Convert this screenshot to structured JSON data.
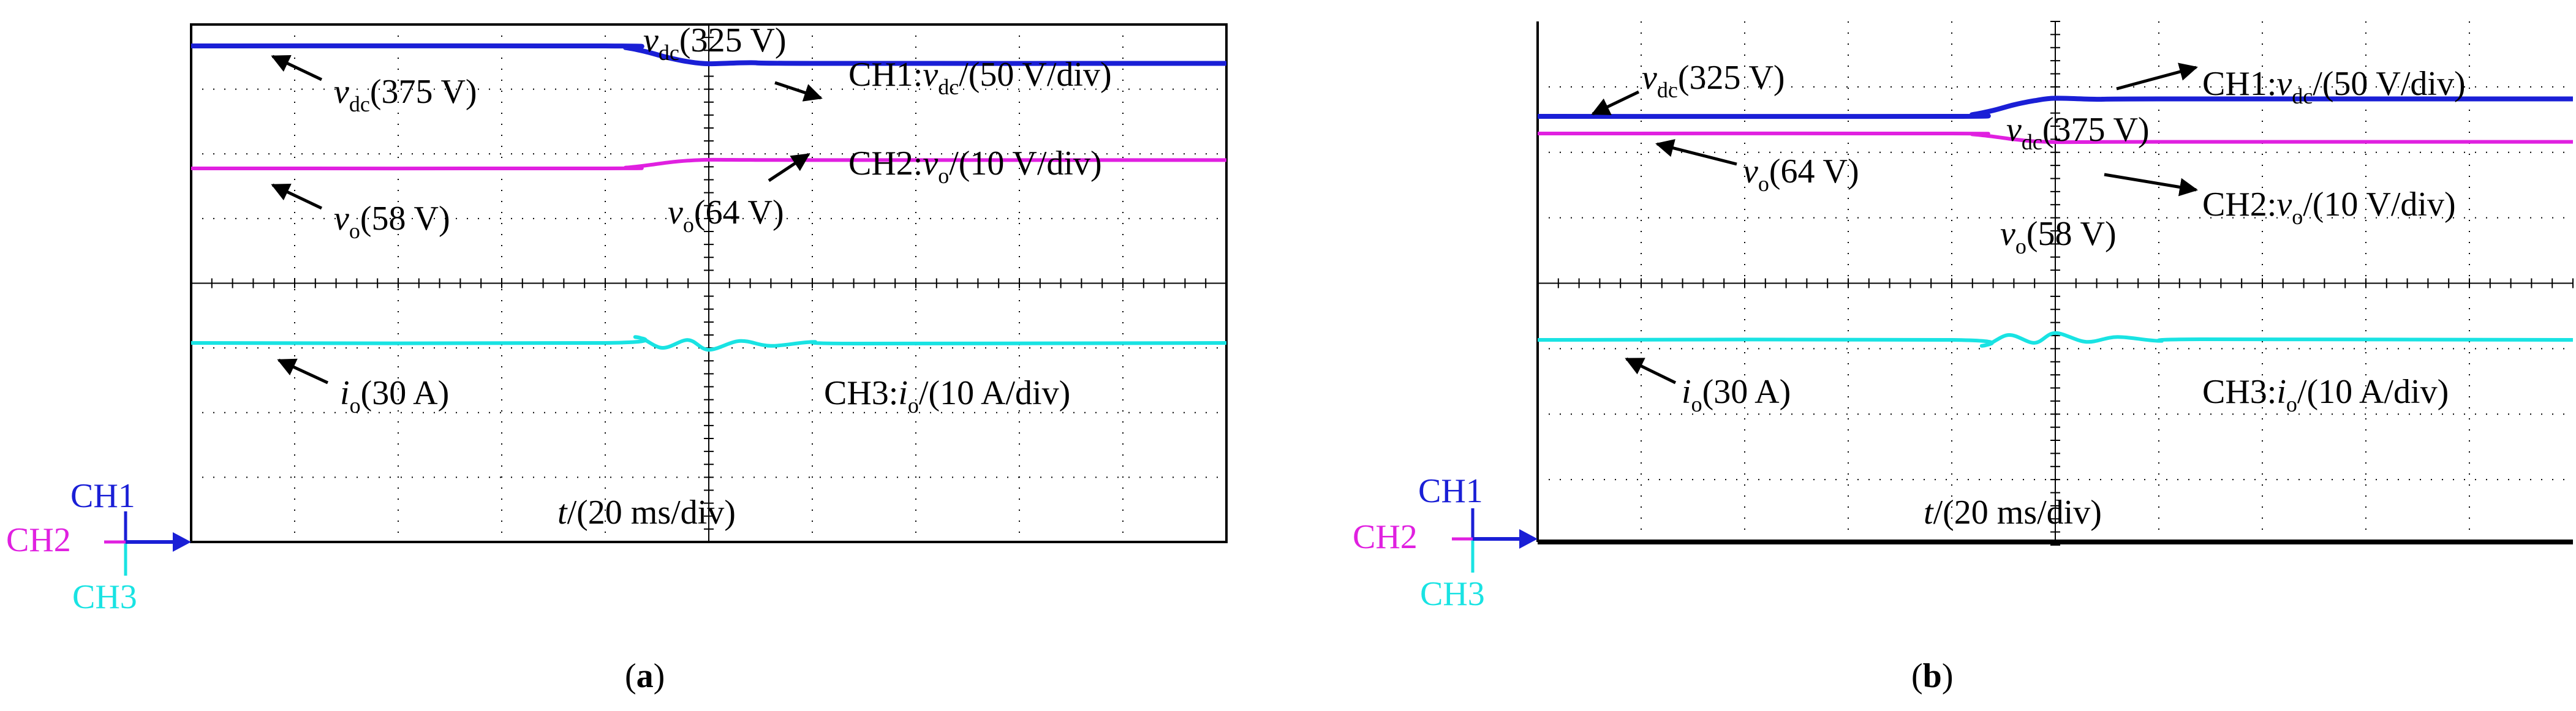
{
  "colors": {
    "ch1": "#1a1fd6",
    "ch2": "#e020e0",
    "ch3": "#19e3e3",
    "grid": "#000000"
  },
  "panels": [
    {
      "caption": "a",
      "annotations": {
        "vdc_pre": {
          "sym": "v",
          "sub": "dc",
          "val": "(375 V)"
        },
        "vdc_post": {
          "sym": "v",
          "sub": "dc",
          "val": "(325 V)"
        },
        "ch1": {
          "pre": "CH1:",
          "sym": "v",
          "sub": "dc",
          "val": "/(50 V/div)"
        },
        "ch2": {
          "pre": "CH2:",
          "sym": "v",
          "sub": "o",
          "val": "/(10 V/div)"
        },
        "vo_pre": {
          "sym": "v",
          "sub": "o",
          "val": "(58 V)"
        },
        "vo_post": {
          "sym": "v",
          "sub": "o",
          "val": "(64 V)"
        },
        "io": {
          "sym": "i",
          "sub": "o",
          "val": "(30 A)"
        },
        "ch3": {
          "pre": "CH3:",
          "sym": "i",
          "sub": "o",
          "val": "/(10 A/div)"
        },
        "time": {
          "sym": "t",
          "val": "/(20 ms/div)"
        }
      }
    },
    {
      "caption": "b",
      "annotations": {
        "vdc_pre": {
          "sym": "v",
          "sub": "dc",
          "val": "(325 V)"
        },
        "vdc_post": {
          "sym": "v",
          "sub": "dc",
          "val": "(375 V)"
        },
        "ch1": {
          "pre": "CH1:",
          "sym": "v",
          "sub": "dc",
          "val": "/(50 V/div)"
        },
        "ch2": {
          "pre": "CH2:",
          "sym": "v",
          "sub": "o",
          "val": "/(10 V/div)"
        },
        "vo_pre": {
          "sym": "v",
          "sub": "o",
          "val": "(64 V)"
        },
        "vo_post": {
          "sym": "v",
          "sub": "o",
          "val": "(58 V)"
        },
        "io": {
          "sym": "i",
          "sub": "o",
          "val": "(30 A)"
        },
        "ch3": {
          "pre": "CH3:",
          "sym": "i",
          "sub": "o",
          "val": "/(10 A/div)"
        },
        "time": {
          "sym": "t",
          "val": "/(20 ms/div)"
        }
      }
    }
  ],
  "channel_markers": {
    "ch1": "CH1",
    "ch2": "CH2",
    "ch3": "CH3"
  },
  "chart_data": [
    {
      "type": "line",
      "panel": "a",
      "x_divisions": 10,
      "y_divisions": 8,
      "time_per_div_ms": 20,
      "series": [
        {
          "name": "CH1",
          "unit": "V",
          "scale_per_div": 50,
          "x": [
            0,
            4,
            4.2,
            4.4,
            4.6,
            4.8,
            5.0,
            5.4,
            6,
            10
          ],
          "values": [
            375,
            375,
            370,
            358,
            342,
            330,
            324,
            327,
            325,
            325
          ]
        },
        {
          "name": "CH2",
          "unit": "V",
          "scale_per_div": 10,
          "x": [
            0,
            4,
            4.2,
            4.4,
            4.6,
            4.8,
            5.0,
            5.4,
            6,
            10
          ],
          "values": [
            58,
            58,
            58.6,
            60.2,
            62.2,
            63.6,
            64.2,
            64.1,
            64,
            64
          ]
        },
        {
          "name": "CH3",
          "unit": "A",
          "scale_per_div": 10,
          "x": [
            0,
            4,
            4.3,
            4.55,
            4.8,
            5.0,
            5.3,
            5.6,
            6.0,
            6.4,
            10
          ],
          "values": [
            30,
            30,
            33,
            27.5,
            31.5,
            26.5,
            31,
            28.5,
            30.5,
            29.7,
            30
          ]
        }
      ]
    },
    {
      "type": "line",
      "panel": "b",
      "x_divisions": 10,
      "y_divisions": 8,
      "time_per_div_ms": 20,
      "series": [
        {
          "name": "CH1",
          "unit": "V",
          "scale_per_div": 50,
          "x": [
            0,
            4,
            4.2,
            4.4,
            4.6,
            4.8,
            5.0,
            5.4,
            6,
            10
          ],
          "values": [
            325,
            325,
            330,
            342,
            358,
            370,
            377,
            374,
            375,
            375
          ]
        },
        {
          "name": "CH2",
          "unit": "V",
          "scale_per_div": 10,
          "x": [
            0,
            4,
            4.2,
            4.4,
            4.6,
            4.8,
            5.0,
            5.4,
            6,
            10
          ],
          "values": [
            64,
            64,
            63.4,
            61.8,
            59.8,
            58.4,
            57.8,
            57.9,
            58,
            58
          ]
        },
        {
          "name": "CH3",
          "unit": "A",
          "scale_per_div": 10,
          "x": [
            0,
            4,
            4.3,
            4.55,
            4.8,
            5.0,
            5.3,
            5.6,
            6.0,
            6.4,
            10
          ],
          "values": [
            30,
            30,
            27,
            32.5,
            28.5,
            33.5,
            29,
            31.5,
            29.5,
            30.3,
            30
          ]
        }
      ]
    }
  ]
}
